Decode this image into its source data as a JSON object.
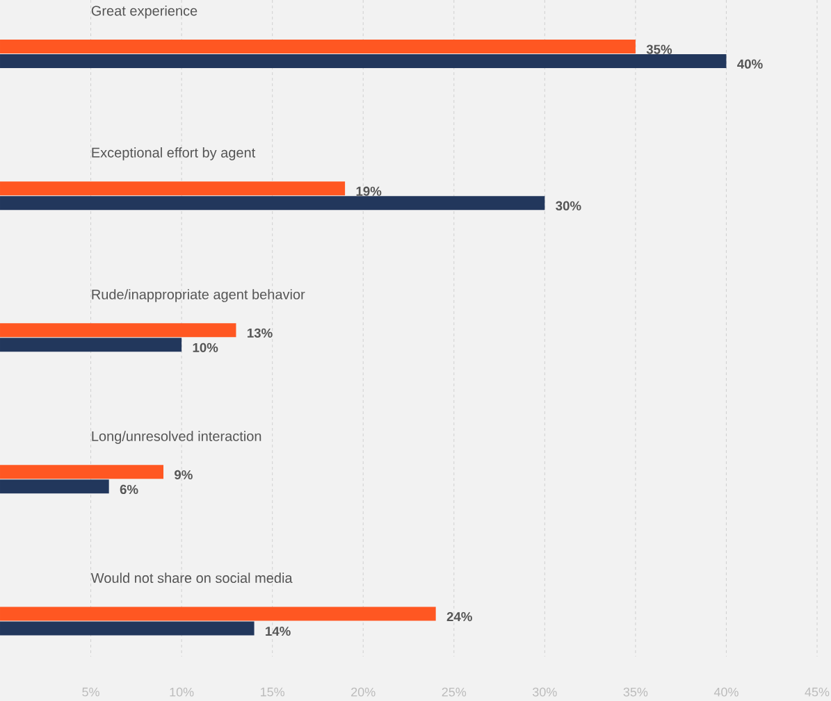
{
  "chart_data": {
    "type": "bar",
    "orientation": "horizontal",
    "grid": "x",
    "categories": [
      "Great experience",
      "Exceptional effort by agent",
      "Rude/inappropriate agent behavior",
      "Long/unresolved interaction",
      "Would not share on social media"
    ],
    "series": [
      {
        "color": "#ff5722",
        "values": [
          35,
          19,
          13,
          9,
          24
        ],
        "value_labels": [
          "35%",
          "19%",
          "13%",
          "9%",
          "24%"
        ]
      },
      {
        "color": "#22375c",
        "values": [
          40,
          30,
          10,
          6,
          14
        ],
        "value_labels": [
          "40%",
          "30%",
          "10%",
          "6%",
          "14%"
        ]
      }
    ],
    "xlim": [
      0,
      45
    ],
    "xticks": [
      {
        "value": 5,
        "label": "5%"
      },
      {
        "value": 10,
        "label": "10%"
      },
      {
        "value": 15,
        "label": "15%"
      },
      {
        "value": 20,
        "label": "20%"
      },
      {
        "value": 25,
        "label": "25%"
      },
      {
        "value": 30,
        "label": "30%"
      },
      {
        "value": 35,
        "label": "35%"
      },
      {
        "value": 40,
        "label": "40%"
      },
      {
        "value": 45,
        "label": "45%"
      }
    ]
  }
}
